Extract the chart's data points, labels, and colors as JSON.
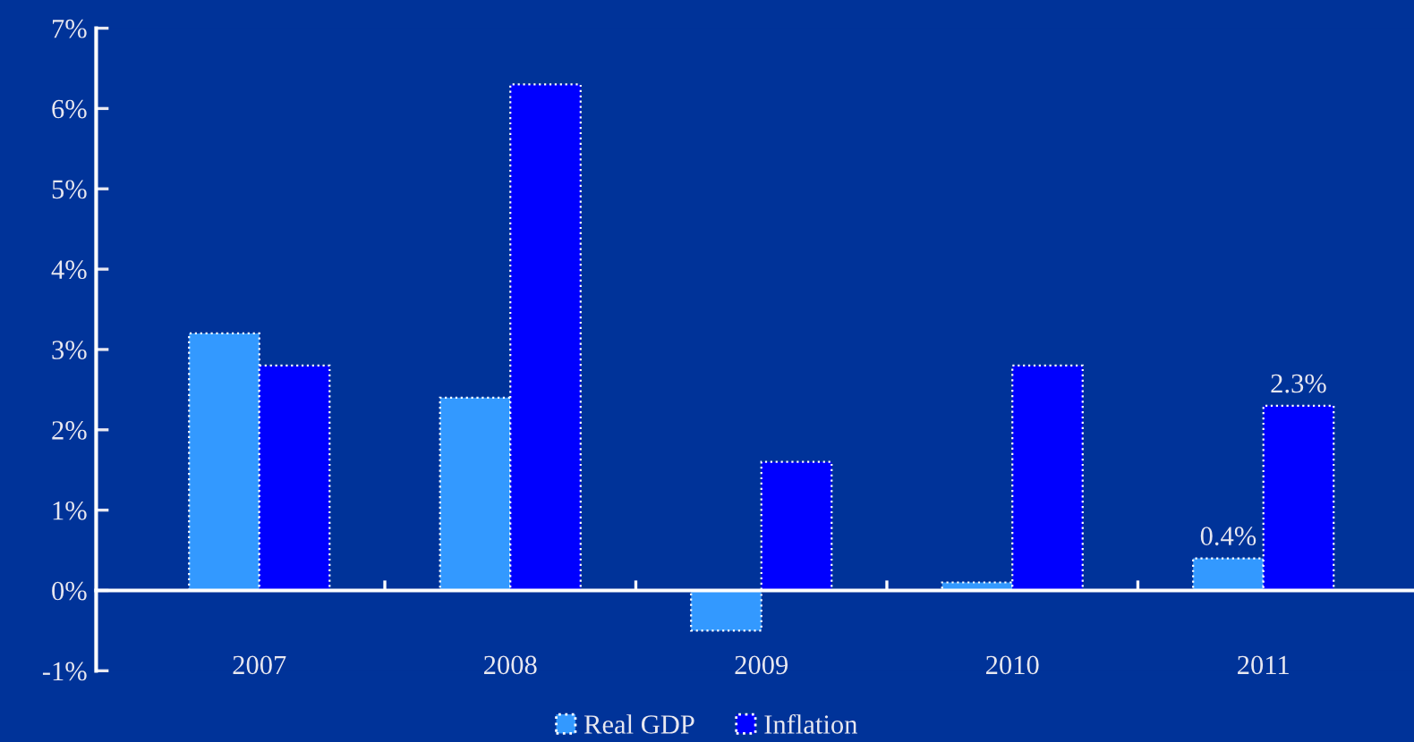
{
  "chart_data": {
    "type": "bar",
    "categories": [
      "2007",
      "2008",
      "2009",
      "2010",
      "2011"
    ],
    "series": [
      {
        "name": "Real GDP",
        "color": "#3399ff",
        "values": [
          3.2,
          2.4,
          -0.5,
          0.1,
          0.4
        ],
        "value_labels": [
          null,
          null,
          null,
          null,
          "0.4%"
        ]
      },
      {
        "name": "Inflation",
        "color": "#0000ff",
        "values": [
          2.8,
          6.3,
          1.6,
          2.8,
          2.3
        ],
        "value_labels": [
          null,
          null,
          null,
          null,
          "2.3%"
        ]
      }
    ],
    "ylim": [
      -1,
      7
    ],
    "yticks": [
      {
        "value": -1,
        "label": "-1%"
      },
      {
        "value": 0,
        "label": "0%"
      },
      {
        "value": 1,
        "label": "1%"
      },
      {
        "value": 2,
        "label": "2%"
      },
      {
        "value": 3,
        "label": "3%"
      },
      {
        "value": 4,
        "label": "4%"
      },
      {
        "value": 5,
        "label": "5%"
      },
      {
        "value": 6,
        "label": "6%"
      },
      {
        "value": 7,
        "label": "7%"
      }
    ],
    "grid": false,
    "legend": "bottom"
  }
}
